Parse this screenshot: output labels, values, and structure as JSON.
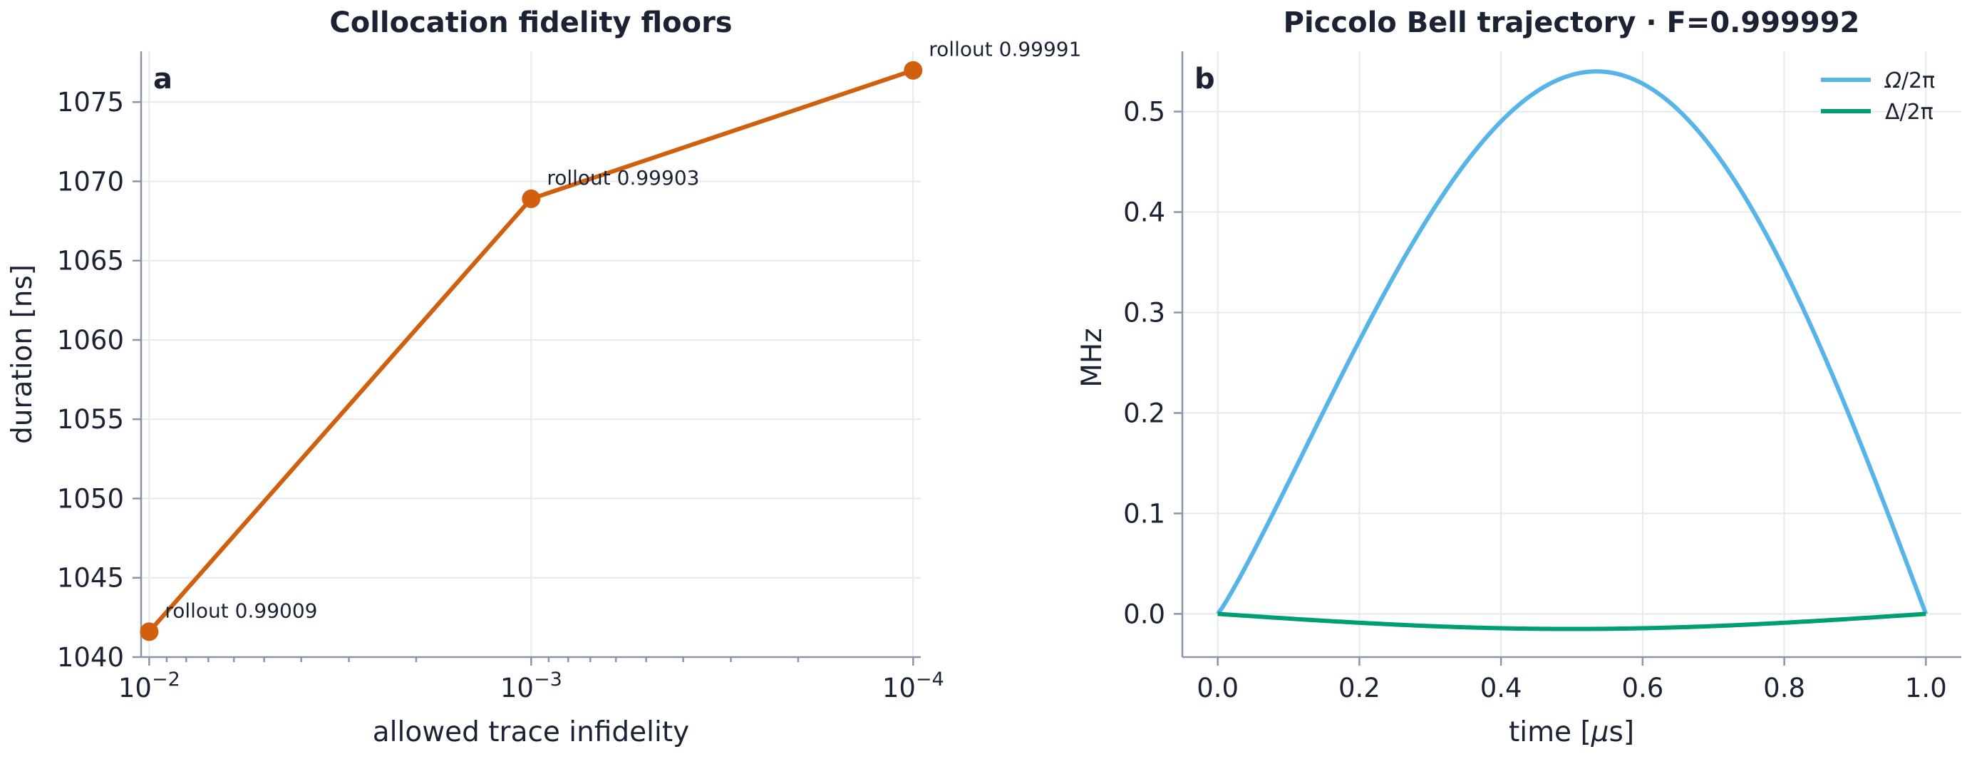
{
  "chart_data": [
    {
      "type": "line",
      "panel_label": "a",
      "title": "Collocation fidelity floors",
      "xlabel": "allowed trace infidelity",
      "ylabel": "duration [ns]",
      "xscale": "log",
      "x_inverted": true,
      "xlim": [
        0.0105,
        9.55e-05
      ],
      "ylim": [
        1040,
        1078.2
      ],
      "grid": true,
      "color": "#d0600e",
      "x": [
        0.01,
        0.001,
        0.0001
      ],
      "x_tick_labels": [
        {
          "base": "10",
          "exp": "−2"
        },
        {
          "base": "10",
          "exp": "−3"
        },
        {
          "base": "10",
          "exp": "−4"
        }
      ],
      "yticks": [
        1040,
        1045,
        1050,
        1055,
        1060,
        1065,
        1070,
        1075
      ],
      "series": [
        {
          "values": [
            1041.6,
            1068.9,
            1077.0
          ]
        }
      ],
      "annotations": [
        "rollout 0.99009",
        "rollout 0.99903",
        "rollout 0.99991"
      ]
    },
    {
      "type": "line",
      "panel_label": "b",
      "title": "Piccolo Bell trajectory · F=0.999992",
      "xlabel_prefix": "time [",
      "xlabel_mu": "μ",
      "xlabel_suffix": "s]",
      "ylabel": "MHz",
      "xlim": [
        -0.05,
        1.05
      ],
      "ylim": [
        -0.043,
        0.56
      ],
      "grid": true,
      "legend_position": "top-right",
      "xticks": [
        "0.0",
        "0.2",
        "0.4",
        "0.6",
        "0.8",
        "1.0"
      ],
      "yticks": [
        "0.0",
        "0.1",
        "0.2",
        "0.3",
        "0.4",
        "0.5"
      ],
      "series": [
        {
          "name": "Ω/2π",
          "name_base": "Ω",
          "name_suffix": "/2π",
          "color": "#56b4e9",
          "peak": 0.54,
          "peak_time": 0.535
        },
        {
          "name": "Δ/2π",
          "name_base": "Δ",
          "name_suffix": "/2π",
          "color": "#009e73",
          "min": -0.015
        }
      ]
    }
  ]
}
